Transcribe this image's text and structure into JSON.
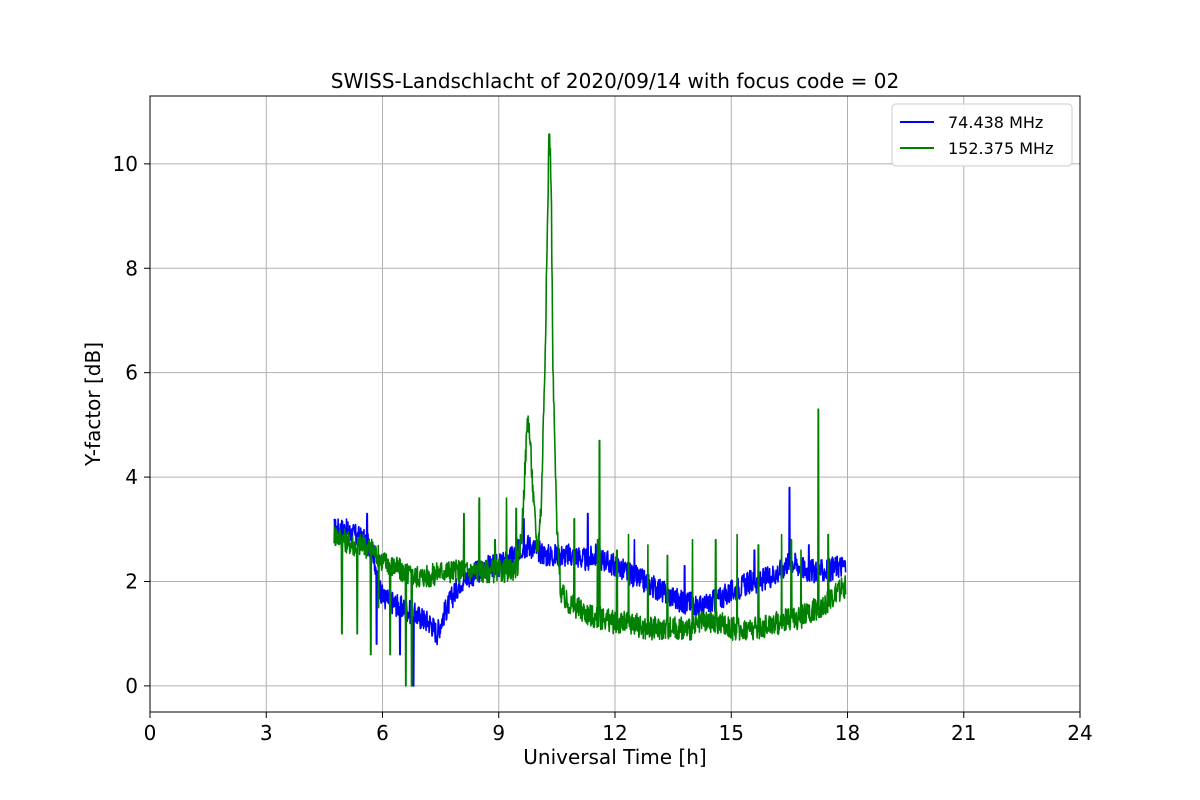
{
  "chart_data": {
    "type": "line",
    "title": "SWISS-Landschlacht of 2020/09/14 with focus code = 02",
    "xlabel": "Universal Time [h]",
    "ylabel": "Y-factor [dB]",
    "xlim": [
      0,
      24
    ],
    "ylim": [
      -0.5,
      11.3
    ],
    "xticks": [
      0,
      3,
      6,
      9,
      12,
      15,
      18,
      21,
      24
    ],
    "yticks": [
      0,
      2,
      4,
      6,
      8,
      10
    ],
    "grid": true,
    "legend_position": "top-right",
    "series": [
      {
        "name": " 74.438 MHz",
        "color": "#0000ff",
        "x": [
          4.75,
          5.0,
          5.25,
          5.5,
          5.75,
          5.9,
          6.0,
          6.25,
          6.5,
          6.75,
          7.0,
          7.25,
          7.4,
          7.6,
          7.8,
          8.0,
          8.25,
          8.5,
          8.75,
          9.0,
          9.25,
          9.5,
          9.75,
          10.0,
          10.25,
          10.5,
          10.75,
          11.0,
          11.25,
          11.5,
          11.75,
          12.0,
          12.25,
          12.5,
          12.75,
          13.0,
          13.25,
          13.5,
          13.75,
          14.0,
          14.25,
          14.5,
          14.75,
          15.0,
          15.25,
          15.5,
          15.75,
          16.0,
          16.25,
          16.5,
          16.75,
          17.0,
          17.25,
          17.5,
          17.75,
          17.95
        ],
        "y": [
          3.0,
          3.0,
          2.9,
          2.8,
          2.6,
          2.0,
          1.7,
          1.6,
          1.5,
          1.4,
          1.3,
          1.2,
          1.0,
          1.4,
          1.7,
          2.0,
          2.1,
          2.2,
          2.3,
          2.3,
          2.4,
          2.6,
          2.7,
          2.6,
          2.5,
          2.5,
          2.5,
          2.5,
          2.4,
          2.5,
          2.4,
          2.3,
          2.2,
          2.1,
          2.0,
          1.9,
          1.8,
          1.7,
          1.6,
          1.6,
          1.5,
          1.6,
          1.7,
          1.8,
          1.9,
          2.0,
          2.0,
          2.1,
          2.2,
          2.4,
          2.3,
          2.2,
          2.2,
          2.2,
          2.3,
          2.3
        ]
      },
      {
        "name": "152.375 MHz",
        "color": "#008000",
        "x": [
          4.75,
          5.0,
          5.25,
          5.5,
          5.75,
          6.0,
          6.25,
          6.5,
          6.75,
          7.0,
          7.25,
          7.5,
          7.75,
          8.0,
          8.25,
          8.5,
          8.75,
          9.0,
          9.25,
          9.5,
          9.6,
          9.7,
          9.75,
          9.8,
          9.9,
          10.0,
          10.1,
          10.2,
          10.25,
          10.3,
          10.35,
          10.4,
          10.5,
          10.6,
          10.75,
          11.0,
          11.25,
          11.5,
          11.75,
          12.0,
          12.25,
          12.5,
          12.75,
          13.0,
          13.25,
          13.5,
          13.75,
          14.0,
          14.25,
          14.5,
          14.75,
          15.0,
          15.25,
          15.5,
          15.75,
          16.0,
          16.25,
          16.5,
          16.75,
          17.0,
          17.25,
          17.5,
          17.75,
          17.95
        ],
        "y": [
          2.9,
          2.8,
          2.7,
          2.7,
          2.6,
          2.4,
          2.3,
          2.2,
          2.1,
          2.1,
          2.1,
          2.2,
          2.2,
          2.2,
          2.2,
          2.2,
          2.2,
          2.2,
          2.2,
          2.3,
          3.0,
          4.5,
          5.2,
          4.8,
          3.5,
          2.6,
          3.5,
          6.5,
          8.5,
          10.7,
          9.8,
          6.0,
          3.0,
          1.8,
          1.6,
          1.5,
          1.4,
          1.3,
          1.3,
          1.2,
          1.2,
          1.2,
          1.1,
          1.1,
          1.1,
          1.1,
          1.1,
          1.1,
          1.2,
          1.2,
          1.2,
          1.1,
          1.1,
          1.1,
          1.1,
          1.2,
          1.2,
          1.3,
          1.3,
          1.4,
          1.5,
          1.6,
          1.8,
          1.9
        ]
      }
    ],
    "spikes": [
      {
        "series": 0,
        "x": [
          5.6,
          5.85,
          6.45,
          6.8,
          9.65,
          11.3,
          12.5,
          13.8,
          15.6,
          16.5,
          17.0
        ],
        "y": [
          3.3,
          0.8,
          0.6,
          0.0,
          3.2,
          3.3,
          2.8,
          2.3,
          2.6,
          3.8,
          2.7
        ]
      },
      {
        "series": 1,
        "x": [
          4.95,
          5.35,
          5.7,
          5.9,
          6.2,
          6.6,
          6.75,
          8.1,
          8.5,
          8.9,
          9.2,
          9.45,
          10.55,
          10.95,
          11.55,
          11.6,
          12.05,
          12.35,
          12.85,
          13.35,
          14.0,
          14.6,
          15.15,
          15.7,
          16.3,
          16.55,
          16.8,
          17.25,
          17.5
        ],
        "y": [
          1.0,
          1.0,
          0.6,
          1.5,
          0.6,
          0.0,
          0.0,
          3.3,
          3.6,
          2.8,
          3.6,
          3.4,
          2.3,
          3.2,
          2.8,
          4.7,
          2.6,
          2.9,
          2.7,
          2.5,
          2.8,
          2.8,
          2.9,
          2.7,
          2.9,
          2.8,
          2.6,
          5.3,
          2.9
        ]
      }
    ]
  }
}
